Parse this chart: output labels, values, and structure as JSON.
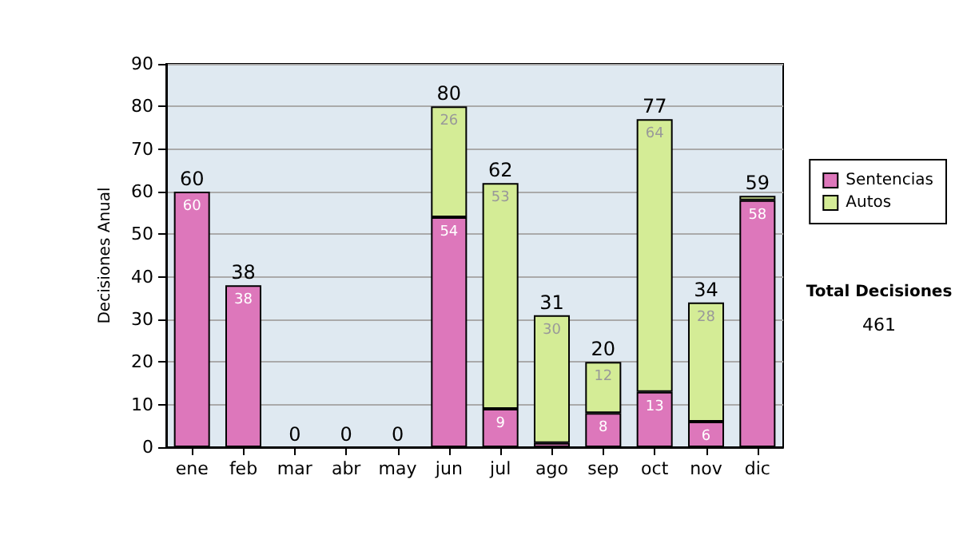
{
  "chart_data": {
    "type": "bar",
    "stacked": true,
    "ylabel": "Decisiones Anual",
    "categories": [
      "ene",
      "feb",
      "mar",
      "abr",
      "may",
      "jun",
      "jul",
      "ago",
      "sep",
      "oct",
      "nov",
      "dic"
    ],
    "series": [
      {
        "name": "Sentencias",
        "color": "#dd77bb",
        "values": [
          60,
          38,
          0,
          0,
          0,
          54,
          9,
          1,
          8,
          13,
          6,
          58
        ],
        "value_labels": [
          "60",
          "38",
          null,
          null,
          null,
          "54",
          "9",
          null,
          "8",
          "13",
          "6",
          "58"
        ]
      },
      {
        "name": "Autos",
        "color": "#d4ec96",
        "values": [
          0,
          0,
          0,
          0,
          0,
          26,
          53,
          30,
          12,
          64,
          28,
          1
        ],
        "value_labels": [
          null,
          null,
          null,
          null,
          null,
          "26",
          "53",
          "30",
          "12",
          "64",
          "28",
          null
        ]
      }
    ],
    "totals": [
      "60",
      "38",
      "0",
      "0",
      "0",
      "80",
      "62",
      "31",
      "20",
      "77",
      "34",
      "59"
    ],
    "ylim": [
      0,
      90
    ],
    "yticks": [
      0,
      10,
      20,
      30,
      40,
      50,
      60,
      70,
      80,
      90
    ],
    "grid": "y",
    "legend": "right",
    "annotations": [
      "Total Decisiones",
      "461"
    ]
  }
}
